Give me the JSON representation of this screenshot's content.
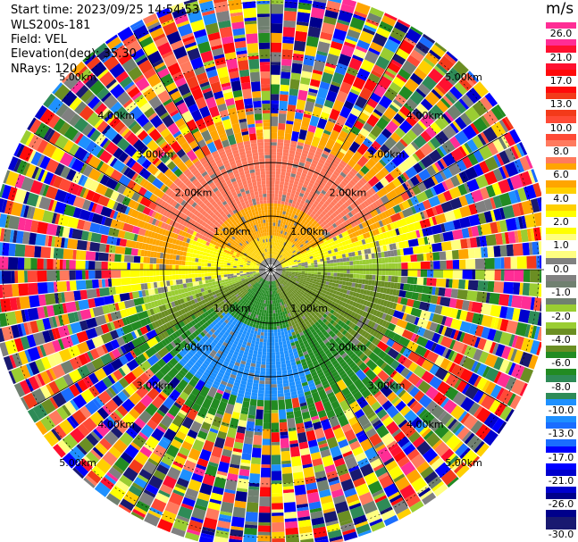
{
  "header": {
    "start_time": "Start time: 2023/09/25 14:54:53",
    "instrument": "WLS200s-181",
    "field": "Field: VEL",
    "elevation": "Elevation(deg): 35.30",
    "nrays": "NRays: 120"
  },
  "colorbar": {
    "unit": "m/s",
    "labels": [
      "26.0",
      "21.0",
      "17.0",
      "13.0",
      "10.0",
      "8.0",
      "6.0",
      "4.0",
      "2.0",
      "1.0",
      "0.0",
      "-1.0",
      "-2.0",
      "-4.0",
      "-6.0",
      "-8.0",
      "-10.0",
      "-13.0",
      "-17.0",
      "-21.0",
      "-26.0",
      "-30.0"
    ],
    "colors": [
      "#ff2d95",
      "#ff1030",
      "#ff0a0a",
      "#f33a1a",
      "#ff4a36",
      "#ff7a5e",
      "#ffa500",
      "#ffd000",
      "#ffff00",
      "#ffff80",
      "#808080",
      "#708070",
      "#9acd32",
      "#6b8e23",
      "#228b22",
      "#2e8b57",
      "#1e90ff",
      "#1a6dff",
      "#0000ff",
      "#0000cd",
      "#00008b",
      "#191970"
    ]
  },
  "chart_data": {
    "type": "ppi",
    "field": "VEL",
    "units": "m/s",
    "nrays": 120,
    "elevation_deg": 35.3,
    "range_rings_km": [
      1.0,
      2.0,
      3.0,
      4.0,
      5.0
    ],
    "range_labels": [
      "1.00km",
      "2.00km",
      "3.00km",
      "4.00km",
      "5.00km"
    ],
    "velocity_pattern": "near-field (<2.4 km): positive (red/orange) to the north, ~0 gray band across east-west, yellow-green mid, green to south, blue far south; far field: noise across full color range"
  }
}
